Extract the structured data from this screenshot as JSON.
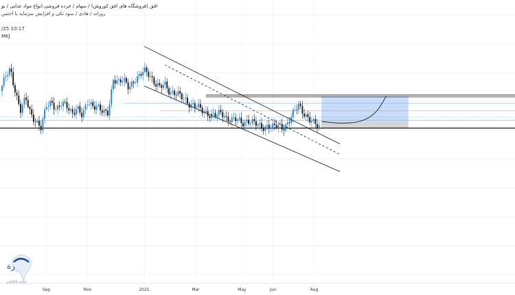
{
  "header": {
    "title": "افق (فروشگاه های افق کوروش) / سهام / خرده فروشی انواع مواد غذایی / بو",
    "subtitle": "روزانه / هادی / سود تکی و افزایش سرمایه با احتس",
    "timestamp": "/25 10:17",
    "symbol": "MKJ"
  },
  "watermark": {
    "domain": "yd365.com"
  },
  "colors": {
    "up": "#1e7bd6",
    "down": "#111111",
    "target_zone": "#c9dbf7",
    "stop_zone": "#d4d4d4",
    "channel": "#111111",
    "level_line": "#6fb0e0"
  },
  "chart_data": {
    "type": "candlestick",
    "title": "",
    "xlabel": "",
    "ylabel": "",
    "x_ticks": [
      "Sep",
      "Nov",
      "2021",
      "Mar",
      "May",
      "Jun",
      "Aug"
    ],
    "x_domain": [
      0,
      100
    ],
    "y_domain": [
      0,
      100
    ],
    "tick_positions": [
      9,
      17,
      28,
      38,
      47,
      53,
      61
    ],
    "price_path": [
      [
        0,
        62
      ],
      [
        1,
        72
      ],
      [
        2,
        78
      ],
      [
        3,
        62
      ],
      [
        4,
        48
      ],
      [
        5,
        56
      ],
      [
        6,
        44
      ],
      [
        7,
        40
      ],
      [
        8,
        34
      ],
      [
        9,
        50
      ],
      [
        10,
        54
      ],
      [
        11,
        49
      ],
      [
        12,
        52
      ],
      [
        13,
        50
      ],
      [
        14,
        46
      ],
      [
        15,
        50
      ],
      [
        16,
        42
      ],
      [
        17,
        54
      ],
      [
        18,
        52
      ],
      [
        19,
        50
      ],
      [
        20,
        45
      ],
      [
        21,
        46
      ],
      [
        22,
        72
      ],
      [
        23,
        68
      ],
      [
        24,
        70
      ],
      [
        25,
        66
      ],
      [
        26,
        70
      ],
      [
        27,
        72
      ],
      [
        28,
        78
      ],
      [
        29,
        76
      ],
      [
        30,
        68
      ],
      [
        31,
        64
      ],
      [
        32,
        68
      ],
      [
        33,
        62
      ],
      [
        34,
        60
      ],
      [
        35,
        58
      ],
      [
        36,
        56
      ],
      [
        37,
        52
      ],
      [
        38,
        50
      ],
      [
        39,
        48
      ],
      [
        40,
        46
      ],
      [
        41,
        44
      ],
      [
        42,
        43
      ],
      [
        43,
        46
      ],
      [
        44,
        42
      ],
      [
        45,
        40
      ],
      [
        46,
        40
      ],
      [
        47,
        38
      ],
      [
        48,
        40
      ],
      [
        49,
        38
      ],
      [
        50,
        36
      ],
      [
        51,
        35
      ],
      [
        52,
        36
      ],
      [
        53,
        34
      ],
      [
        54,
        36
      ],
      [
        55,
        35
      ],
      [
        56,
        38
      ],
      [
        57,
        45
      ],
      [
        58,
        52
      ],
      [
        59,
        46
      ],
      [
        60,
        40
      ],
      [
        61,
        37
      ],
      [
        62,
        36
      ]
    ],
    "channel_lines": [
      {
        "name": "upper",
        "from": [
          28,
          96
        ],
        "to": [
          66,
          22
        ]
      },
      {
        "name": "middle",
        "from": [
          32,
          82
        ],
        "to": [
          66,
          14
        ]
      },
      {
        "name": "lower",
        "from": [
          28,
          66
        ],
        "to": [
          66,
          1
        ]
      }
    ],
    "horizontal_levels": [
      {
        "y": 58.3,
        "x_from": 40,
        "style": "double-dark"
      },
      {
        "y": 53,
        "x_from": 24,
        "style": "light"
      },
      {
        "y": 47,
        "x_from": 31,
        "style": "light"
      },
      {
        "y": 42.5,
        "x_from": 0,
        "style": "light-dotted"
      },
      {
        "y": 40,
        "x_from": 0,
        "style": "light"
      },
      {
        "y": 34,
        "x_from": 0,
        "style": "dark"
      }
    ],
    "target_zone": {
      "x_from": 62.4,
      "x_to": 79.3,
      "y_from": 38.5,
      "y_to": 58.3
    },
    "stop_zone": {
      "x_from": 62.4,
      "x_to": 79.3,
      "y_from": 34,
      "y_to": 38.5
    },
    "cup_curve": [
      [
        62.5,
        39
      ],
      [
        66,
        37.5
      ],
      [
        70,
        38.5
      ],
      [
        73,
        45
      ],
      [
        75,
        58.3
      ]
    ]
  }
}
